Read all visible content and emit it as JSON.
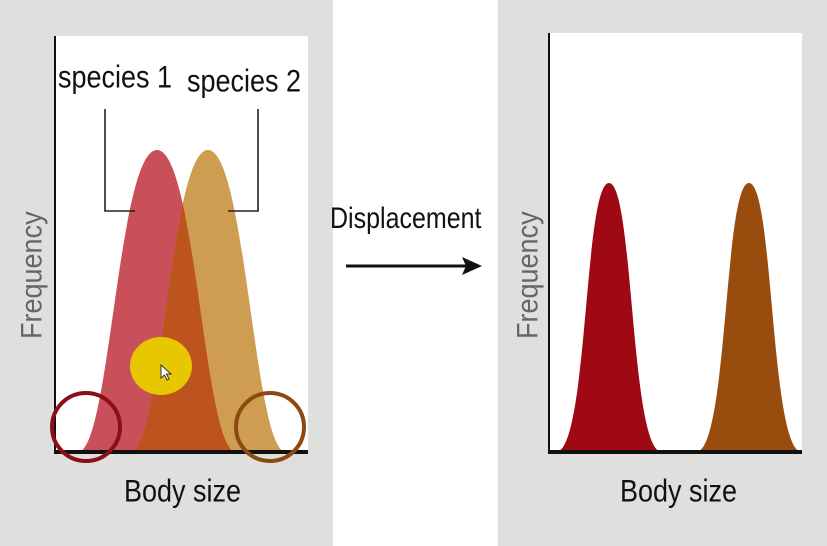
{
  "left_diagram": {
    "species_1_label": "species 1",
    "species_2_label": "species 2",
    "y_axis_label": "Frequency",
    "x_axis_label": "Body size"
  },
  "arrow": {
    "label": "Displacement"
  },
  "right_diagram": {
    "y_axis_label": "Frequency",
    "x_axis_label": "Body size"
  },
  "colors": {
    "species_1": "#c9505a",
    "species_2": "#cf9d52",
    "overlap": "#bd531f",
    "species_1_displaced": "#9e0914",
    "species_2_displaced": "#984d0f",
    "left_circle": "#8a0f1a",
    "right_circle": "#8a4a12",
    "cursor_highlight": "#e6c700"
  }
}
